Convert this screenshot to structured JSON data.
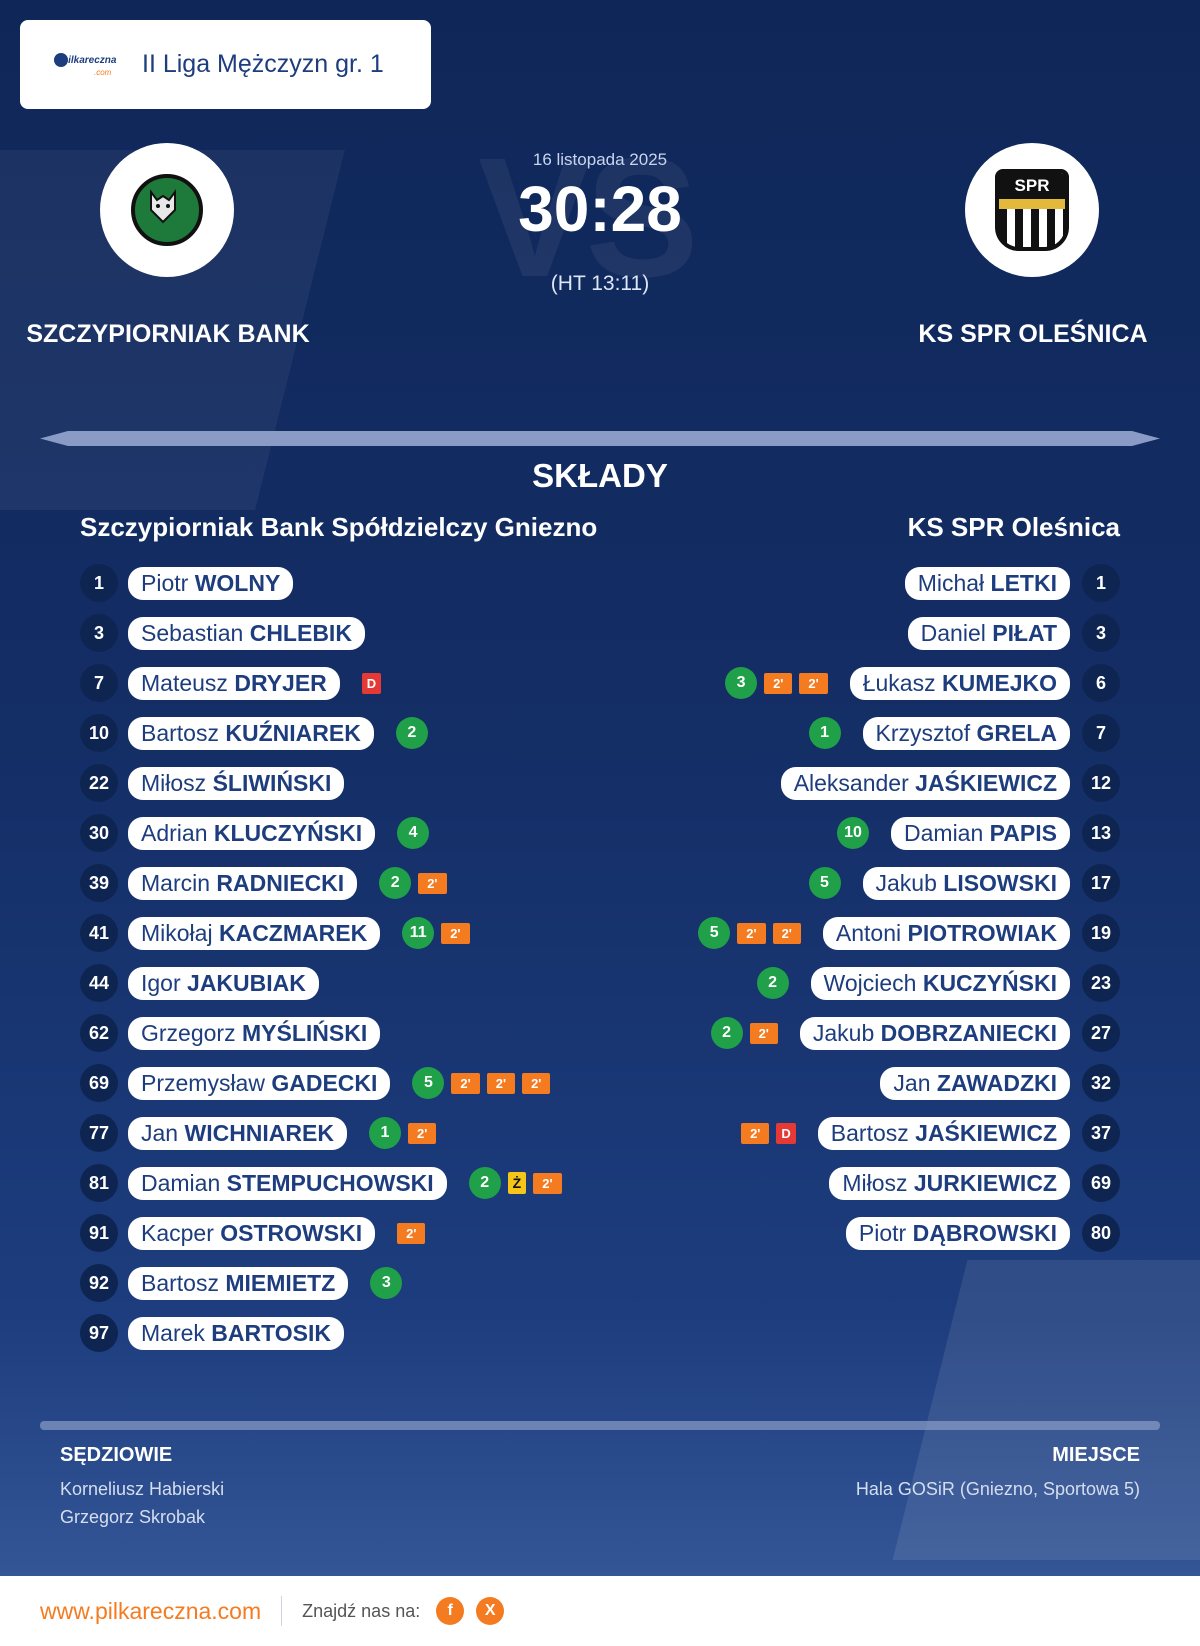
{
  "league": {
    "name": "II Liga Mężczyzn gr. 1",
    "logo_text": "pilkareczna",
    "logo_suffix": ".com"
  },
  "match": {
    "date": "16 listopada 2025",
    "score": "30:28",
    "halftime": "(HT 13:11)",
    "vs": "VS",
    "home": {
      "name": "SZCZYPIORNIAK BANK",
      "crest_icon": "wolf-crest-icon"
    },
    "away": {
      "name": "KS SPR OLEŚNICA",
      "crest_icon": "spr-shield-icon",
      "crest_text": "SPR"
    }
  },
  "lineups": {
    "title": "SKŁADY",
    "home": {
      "team": "Szczypiorniak Bank Spółdzielczy Gniezno",
      "players": [
        {
          "num": "1",
          "first": "Piotr",
          "last": "WOLNY",
          "events": []
        },
        {
          "num": "3",
          "first": "Sebastian",
          "last": "CHLEBIK",
          "events": []
        },
        {
          "num": "7",
          "first": "Mateusz",
          "last": "DRYJER",
          "events": [
            {
              "type": "red",
              "text": "D"
            }
          ]
        },
        {
          "num": "10",
          "first": "Bartosz",
          "last": "KUŹNIAREK",
          "events": [
            {
              "type": "goal",
              "text": "2"
            }
          ]
        },
        {
          "num": "22",
          "first": "Miłosz",
          "last": "ŚLIWIŃSKI",
          "events": []
        },
        {
          "num": "30",
          "first": "Adrian",
          "last": "KLUCZYŃSKI",
          "events": [
            {
              "type": "goal",
              "text": "4"
            }
          ]
        },
        {
          "num": "39",
          "first": "Marcin",
          "last": "RADNIECKI",
          "events": [
            {
              "type": "goal",
              "text": "2"
            },
            {
              "type": "sus",
              "text": "2'"
            }
          ]
        },
        {
          "num": "41",
          "first": "Mikołaj",
          "last": "KACZMAREK",
          "events": [
            {
              "type": "goal",
              "text": "11"
            },
            {
              "type": "sus",
              "text": "2'"
            }
          ]
        },
        {
          "num": "44",
          "first": "Igor",
          "last": "JAKUBIAK",
          "events": []
        },
        {
          "num": "62",
          "first": "Grzegorz",
          "last": "MYŚLIŃSKI",
          "events": []
        },
        {
          "num": "69",
          "first": "Przemysław",
          "last": "GADECKI",
          "events": [
            {
              "type": "goal",
              "text": "5"
            },
            {
              "type": "sus",
              "text": "2'"
            },
            {
              "type": "sus",
              "text": "2'"
            },
            {
              "type": "sus",
              "text": "2'"
            }
          ]
        },
        {
          "num": "77",
          "first": "Jan",
          "last": "WICHNIAREK",
          "events": [
            {
              "type": "goal",
              "text": "1"
            },
            {
              "type": "sus",
              "text": "2'"
            }
          ]
        },
        {
          "num": "81",
          "first": "Damian",
          "last": "STEMPUCHOWSKI",
          "events": [
            {
              "type": "goal",
              "text": "2"
            },
            {
              "type": "yel",
              "text": "Ż"
            },
            {
              "type": "sus",
              "text": "2'"
            }
          ]
        },
        {
          "num": "91",
          "first": "Kacper",
          "last": "OSTROWSKI",
          "events": [
            {
              "type": "sus",
              "text": "2'"
            }
          ]
        },
        {
          "num": "92",
          "first": "Bartosz",
          "last": "MIEMIETZ",
          "events": [
            {
              "type": "goal",
              "text": "3"
            }
          ]
        },
        {
          "num": "97",
          "first": "Marek",
          "last": "BARTOSIK",
          "events": []
        }
      ]
    },
    "away": {
      "team": "KS SPR Oleśnica",
      "players": [
        {
          "num": "1",
          "first": "Michał",
          "last": "LETKI",
          "events": []
        },
        {
          "num": "3",
          "first": "Daniel",
          "last": "PIŁAT",
          "events": []
        },
        {
          "num": "6",
          "first": "Łukasz",
          "last": "KUMEJKO",
          "events": [
            {
              "type": "goal",
              "text": "3"
            },
            {
              "type": "sus",
              "text": "2'"
            },
            {
              "type": "sus",
              "text": "2'"
            }
          ]
        },
        {
          "num": "7",
          "first": "Krzysztof",
          "last": "GRELA",
          "events": [
            {
              "type": "goal",
              "text": "1"
            }
          ]
        },
        {
          "num": "12",
          "first": "Aleksander",
          "last": "JAŚKIEWICZ",
          "events": []
        },
        {
          "num": "13",
          "first": "Damian",
          "last": "PAPIS",
          "events": [
            {
              "type": "goal",
              "text": "10"
            }
          ]
        },
        {
          "num": "17",
          "first": "Jakub",
          "last": "LISOWSKI",
          "events": [
            {
              "type": "goal",
              "text": "5"
            }
          ]
        },
        {
          "num": "19",
          "first": "Antoni",
          "last": "PIOTROWIAK",
          "events": [
            {
              "type": "goal",
              "text": "5"
            },
            {
              "type": "sus",
              "text": "2'"
            },
            {
              "type": "sus",
              "text": "2'"
            }
          ]
        },
        {
          "num": "23",
          "first": "Wojciech",
          "last": "KUCZYŃSKI",
          "events": [
            {
              "type": "goal",
              "text": "2"
            }
          ]
        },
        {
          "num": "27",
          "first": "Jakub",
          "last": "DOBRZANIECKI",
          "events": [
            {
              "type": "goal",
              "text": "2"
            },
            {
              "type": "sus",
              "text": "2'"
            }
          ]
        },
        {
          "num": "32",
          "first": "Jan",
          "last": "ZAWADZKI",
          "events": []
        },
        {
          "num": "37",
          "first": "Bartosz",
          "last": "JAŚKIEWICZ",
          "events": [
            {
              "type": "sus",
              "text": "2'"
            },
            {
              "type": "red",
              "text": "D"
            }
          ]
        },
        {
          "num": "69",
          "first": "Miłosz",
          "last": "JURKIEWICZ",
          "events": []
        },
        {
          "num": "80",
          "first": "Piotr",
          "last": "DĄBROWSKI",
          "events": []
        }
      ]
    }
  },
  "referees": {
    "title": "SĘDZIOWIE",
    "names": [
      "Korneliusz Habierski",
      "Grzegorz Skrobak"
    ]
  },
  "venue": {
    "title": "MIEJSCE",
    "name": "Hala GOSiR (Gniezno, Sportowa 5)"
  },
  "footer": {
    "site": "www.pilkareczna.com",
    "find": "Znajdź nas na:",
    "social": [
      "f",
      "X"
    ]
  },
  "colors": {
    "accent": "#f47b20",
    "navy": "#1d3d7e",
    "goal": "#1fa049",
    "red_card": "#e53935",
    "yellow_card": "#f5c518"
  }
}
